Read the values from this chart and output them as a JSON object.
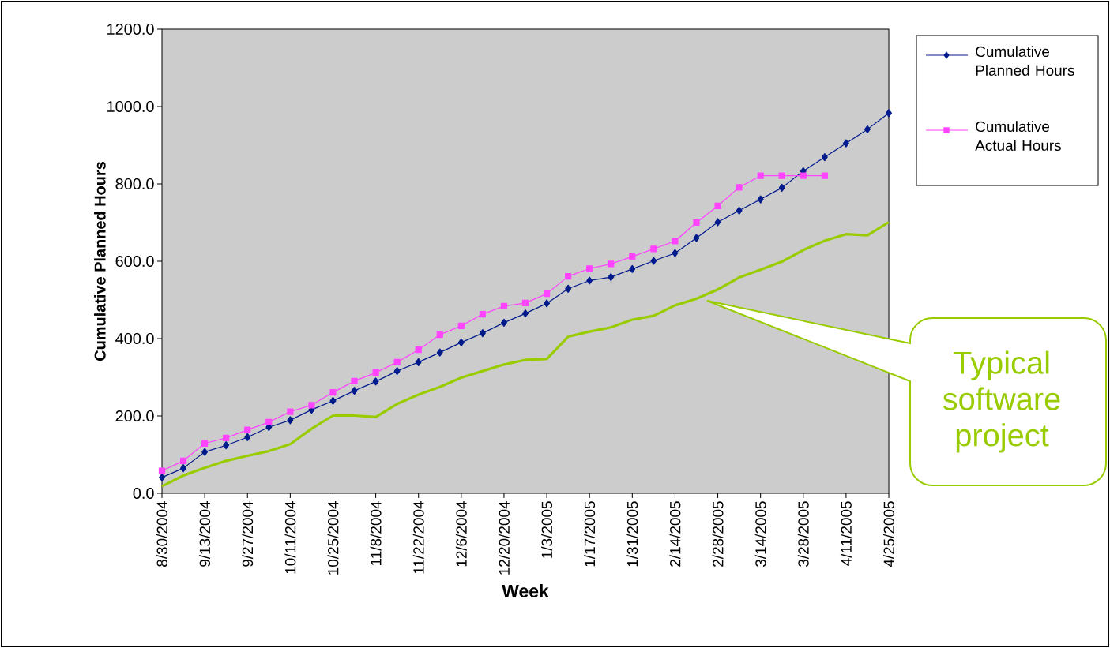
{
  "chart_data": {
    "type": "line",
    "xlabel": "Week",
    "ylabel": "Cumulative Planned Hours",
    "annotations": [
      "Typical software project"
    ],
    "categories": [
      "8/30/2004",
      null,
      "9/13/2004",
      null,
      "9/27/2004",
      null,
      "10/11/2004",
      null,
      "10/25/2004",
      null,
      "11/8/2004",
      null,
      "11/22/2004",
      null,
      "12/6/2004",
      null,
      "12/20/2004",
      null,
      "1/3/2005",
      null,
      "1/17/2005",
      null,
      "1/31/2005",
      null,
      "2/14/2005",
      null,
      "2/28/2005",
      null,
      "3/14/2005",
      null,
      "3/28/2005",
      null,
      "4/11/2005",
      null,
      "4/25/2005"
    ],
    "series": [
      {
        "name": "Cumulative Planned Hours",
        "color": "#001a8c",
        "marker": "diamond",
        "values": [
          41,
          65,
          107,
          124,
          145,
          171,
          189,
          216,
          239,
          265,
          289,
          316,
          339,
          364,
          390,
          414,
          441,
          465,
          491,
          529,
          550,
          559,
          580,
          601,
          621,
          660,
          701,
          731,
          760,
          790,
          833,
          869,
          905,
          941,
          983
        ]
      },
      {
        "name": "Cumulative Actual Hours",
        "color": "#ff44ff",
        "marker": "square",
        "values": [
          58,
          84,
          129,
          143,
          164,
          184,
          211,
          228,
          261,
          290,
          312,
          339,
          371,
          410,
          433,
          463,
          484,
          492,
          516,
          561,
          581,
          593,
          612,
          632,
          652,
          700,
          743,
          791,
          821,
          821,
          821,
          821,
          null,
          null,
          null
        ]
      },
      {
        "color": "#99cc00",
        "marker": "none",
        "values": [
          18,
          46,
          66,
          84,
          97,
          109,
          127,
          167,
          201,
          201,
          197,
          231,
          255,
          275,
          299,
          316,
          333,
          345,
          347,
          405,
          418,
          429,
          449,
          459,
          486,
          503,
          527,
          558,
          578,
          599,
          629,
          653,
          670,
          667,
          701
        ]
      }
    ],
    "ylim": [
      0,
      1200
    ],
    "yticks": [
      {
        "value": 0,
        "label": "0.0"
      },
      {
        "value": 200,
        "label": "200.0"
      },
      {
        "value": 400,
        "label": "400.0"
      },
      {
        "value": 600,
        "label": "600.0"
      },
      {
        "value": 800,
        "label": "800.0"
      },
      {
        "value": 1000,
        "label": "1000.0"
      },
      {
        "value": 1200,
        "label": "1200.0"
      }
    ],
    "legend": "top right"
  }
}
